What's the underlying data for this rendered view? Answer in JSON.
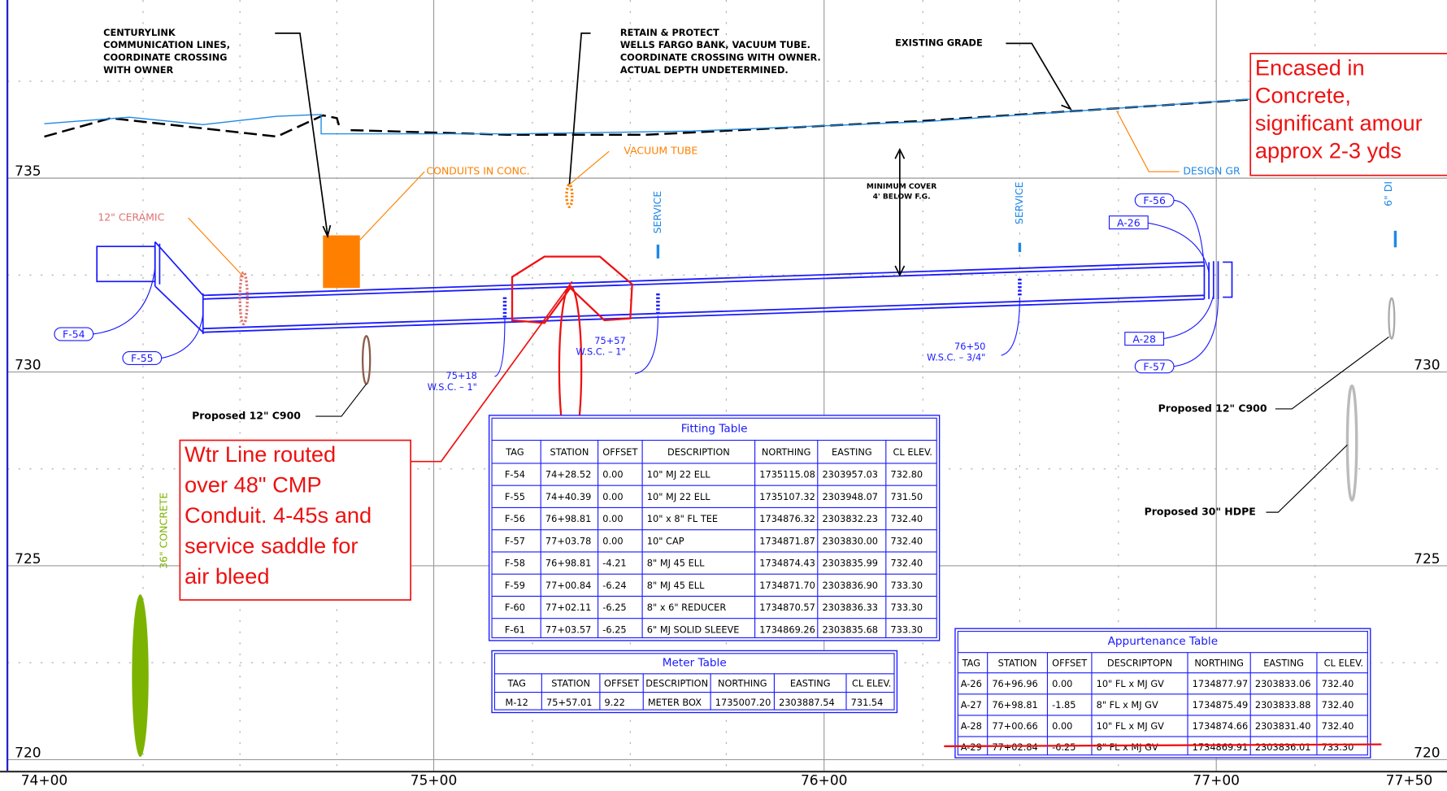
{
  "axis": {
    "elevations_left": [
      "735",
      "730",
      "725",
      "720"
    ],
    "elevations_right": [
      "730",
      "725",
      "720"
    ],
    "stations": [
      "74+00",
      "75+00",
      "76+00",
      "77+00",
      "77+50"
    ]
  },
  "labels": {
    "centurylink": [
      "CENTURYLINK",
      "COMMUNICATION LINES,",
      "COORDINATE CROSSING",
      "WITH OWNER"
    ],
    "wells_fargo": [
      "RETAIN & PROTECT",
      "WELLS FARGO BANK, VACUUM TUBE.",
      "COORDINATE CROSSING WITH OWNER.",
      "ACTUAL DEPTH UNDETERMINED."
    ],
    "existing_grade": "EXISTING GRADE",
    "design_grade": "DESIGN GR",
    "conduits": "CONDUITS IN CONC.",
    "vacuum_tube": "VACUUM TUBE",
    "ceramic": "12\" CERAMIC",
    "service_1": "SERVICE",
    "service_2": "SERVICE",
    "ductile": "6\" DI",
    "min_cover": [
      "MINIMUM COVER",
      "4' BELOW F.G."
    ],
    "tags": [
      "F-54",
      "F-55",
      "F-56",
      "A-26",
      "A-28",
      "F-57"
    ],
    "wsc_1": [
      "75+18",
      "W.S.C. –  1\""
    ],
    "wsc_2": [
      "75+57",
      "W.S.C. –  1\""
    ],
    "wsc_3": [
      "76+50",
      "W.S.C. –  3/4\""
    ],
    "proposed_c900_left": "Proposed 12\" C900",
    "proposed_c900_right": "Proposed 12\" C900",
    "proposed_hdpe": "Proposed 30\" HDPE",
    "concrete": "36\" CONCRETE"
  },
  "callouts": {
    "encased": [
      "Encased in",
      "Concrete,",
      "significant amour",
      "approx 2-3 yds"
    ],
    "water_line": [
      "Wtr Line routed",
      "over 48\" CMP",
      "Conduit. 4-45s and",
      "service saddle for",
      "air bleed"
    ]
  },
  "fitting_table": {
    "title": "Fitting Table",
    "headers": [
      "TAG",
      "STATION",
      "OFFSET",
      "DESCRIPTION",
      "NORTHING",
      "EASTING",
      "CL ELEV."
    ],
    "rows": [
      [
        "F-54",
        "74+28.52",
        "0.00",
        "10\" MJ 22 ELL",
        "1735115.08",
        "2303957.03",
        "732.80"
      ],
      [
        "F-55",
        "74+40.39",
        "0.00",
        "10\" MJ 22 ELL",
        "1735107.32",
        "2303948.07",
        "731.50"
      ],
      [
        "F-56",
        "76+98.81",
        "0.00",
        "10\" x 8\" FL TEE",
        "1734876.32",
        "2303832.23",
        "732.40"
      ],
      [
        "F-57",
        "77+03.78",
        "0.00",
        "10\" CAP",
        "1734871.87",
        "2303830.00",
        "732.40"
      ],
      [
        "F-58",
        "76+98.81",
        "-4.21",
        "8\" MJ 45 ELL",
        "1734874.43",
        "2303835.99",
        "732.40"
      ],
      [
        "F-59",
        "77+00.84",
        "-6.24",
        "8\" MJ 45 ELL",
        "1734871.70",
        "2303836.90",
        "733.30"
      ],
      [
        "F-60",
        "77+02.11",
        "-6.25",
        "8\" x 6\" REDUCER",
        "1734870.57",
        "2303836.33",
        "733.30"
      ],
      [
        "F-61",
        "77+03.57",
        "-6.25",
        "6\" MJ SOLID SLEEVE",
        "1734869.26",
        "2303835.68",
        "733.30"
      ]
    ]
  },
  "meter_table": {
    "title": "Meter Table",
    "headers": [
      "TAG",
      "STATION",
      "OFFSET",
      "DESCRIPTION",
      "NORTHING",
      "EASTING",
      "CL ELEV."
    ],
    "rows": [
      [
        "M-12",
        "75+57.01",
        "9.22",
        "METER BOX",
        "1735007.20",
        "2303887.54",
        "731.54"
      ]
    ]
  },
  "appurtenance_table": {
    "title": "Appurtenance Table",
    "headers": [
      "TAG",
      "STATION",
      "OFFSET",
      "DESCRIPTOPN",
      "NORTHING",
      "EASTING",
      "CL ELEV."
    ],
    "rows": [
      [
        "A-26",
        "76+96.96",
        "0.00",
        "10\" FL x MJ GV",
        "1734877.97",
        "2303833.06",
        "732.40"
      ],
      [
        "A-27",
        "76+98.81",
        "-1.85",
        "8\" FL x MJ GV",
        "1734875.49",
        "2303833.88",
        "732.40"
      ],
      [
        "A-28",
        "77+00.66",
        "0.00",
        "10\" FL x MJ GV",
        "1734874.66",
        "2303831.40",
        "732.40"
      ],
      [
        "A-29",
        "77+02.84",
        "-6.25",
        "8\" FL x MJ GV",
        "1734869.91",
        "2303836.01",
        "733.30"
      ]
    ]
  }
}
